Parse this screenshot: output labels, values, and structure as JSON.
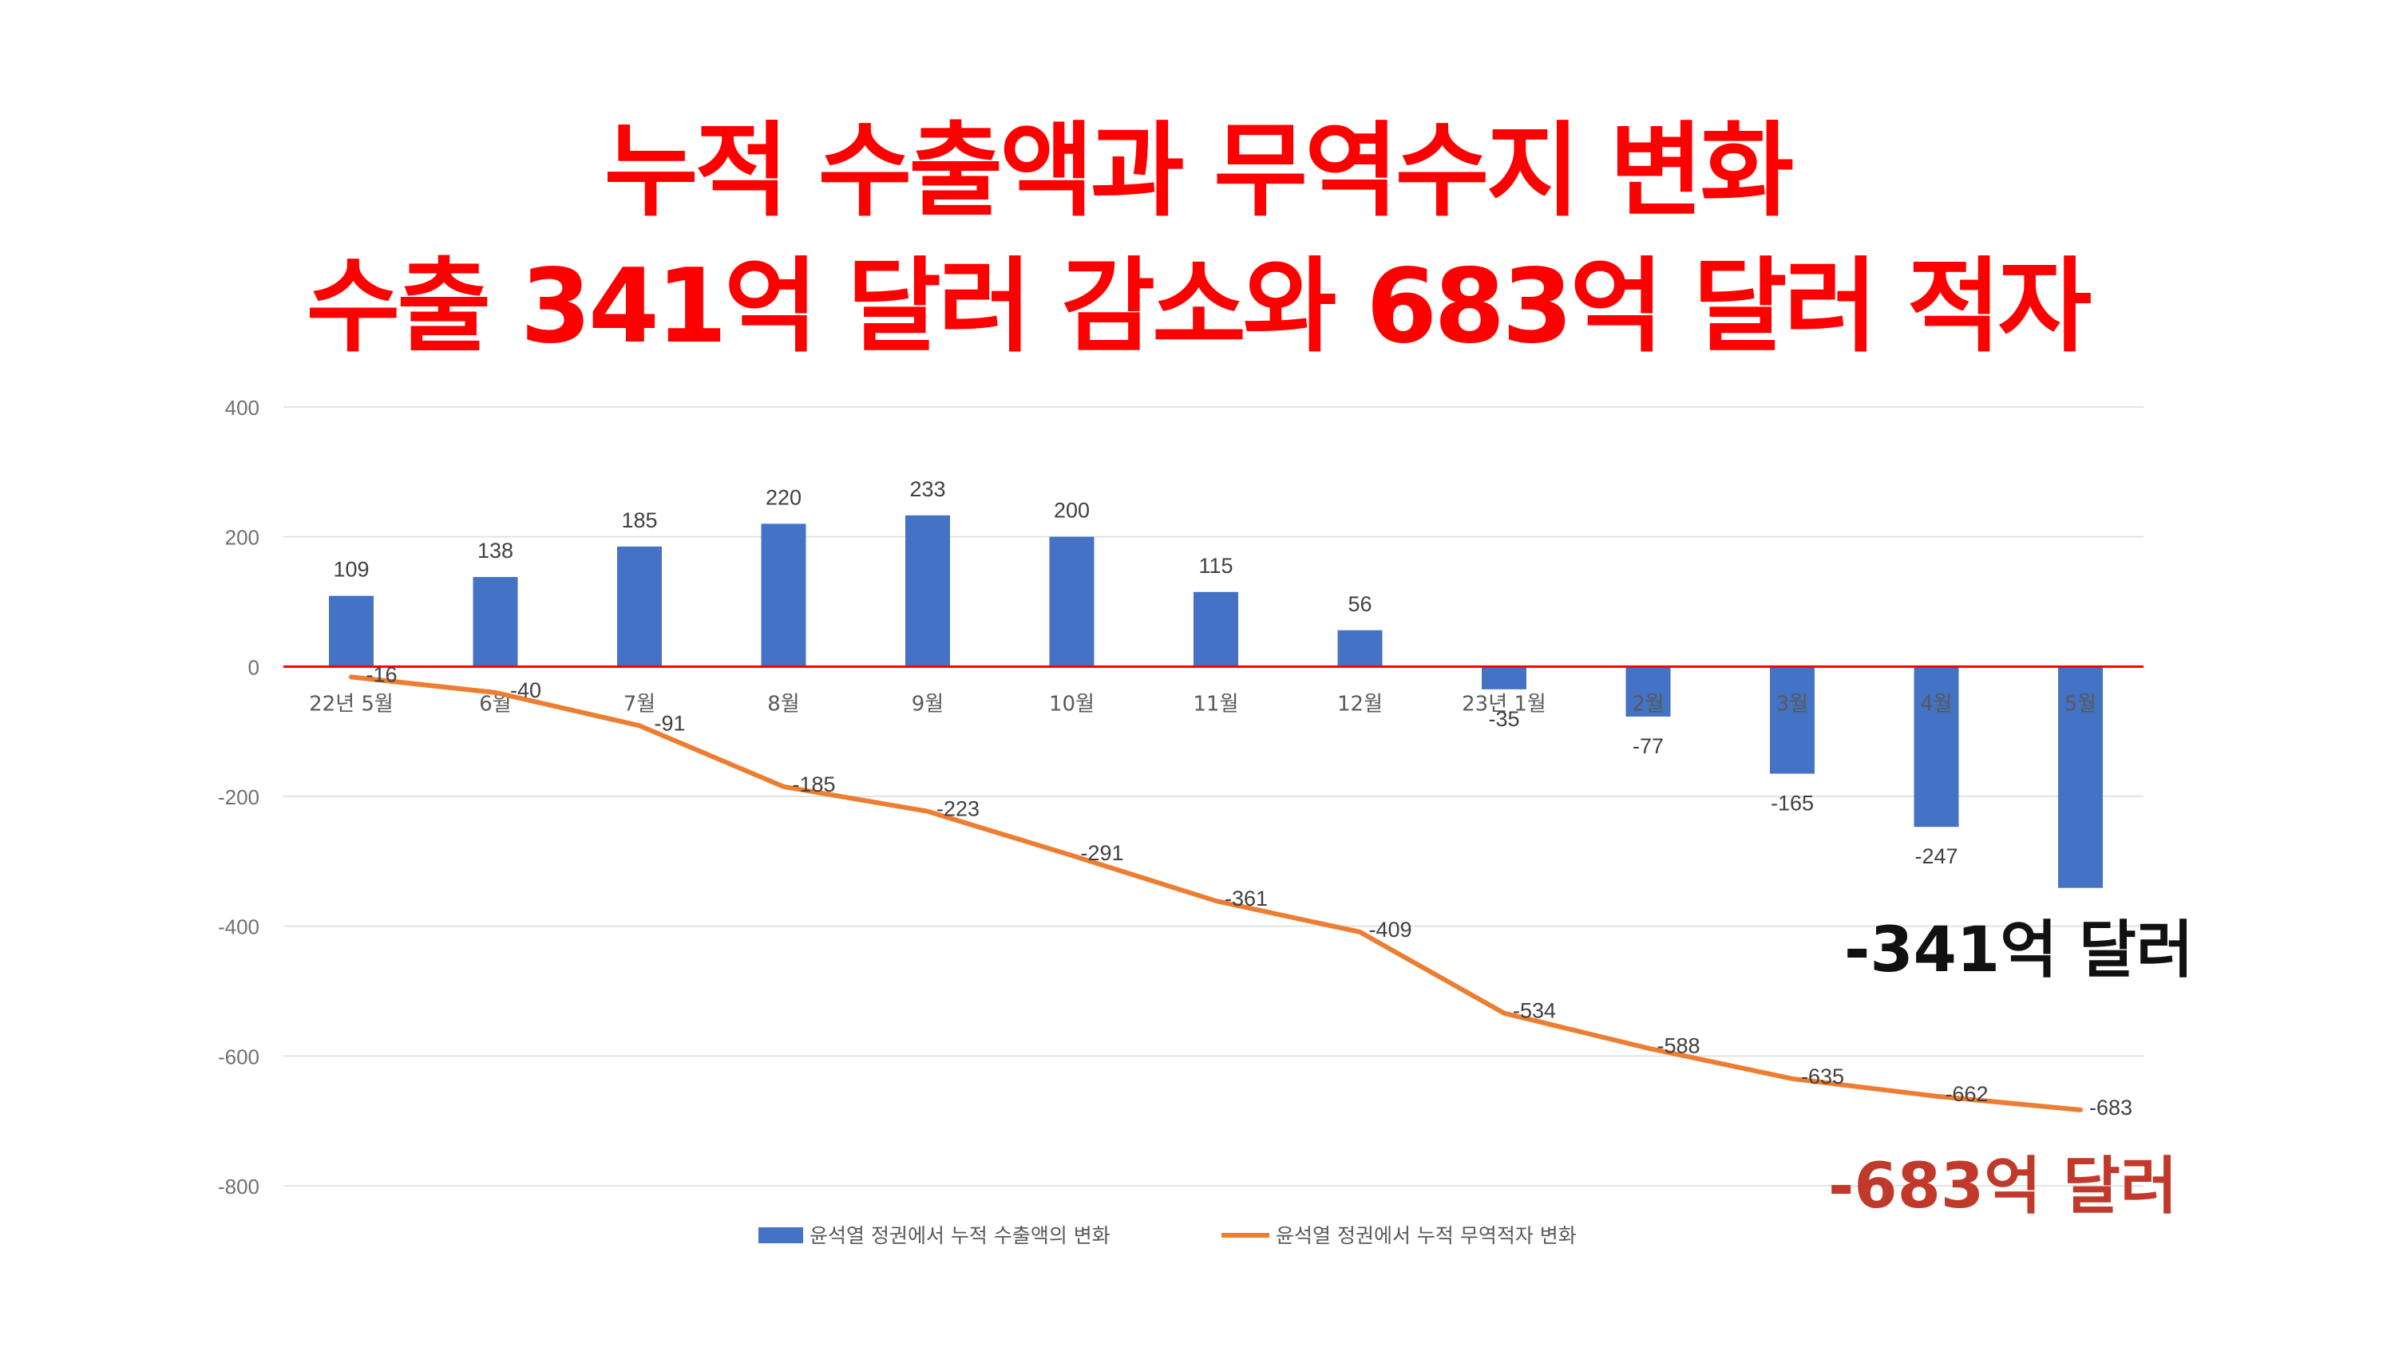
{
  "headline": {
    "line1": "누적 수출액과 무역수지 변화",
    "line2": "수출 341억 달러 감소와 683억 달러 적자"
  },
  "callouts": {
    "export_total": "-341억 달러",
    "trade_total": "-683억 달러"
  },
  "colors": {
    "headline": "#ff0000",
    "bar": "#4472c4",
    "line": "#ed7d31",
    "zero_line": "#ff0000",
    "export_callout": "#111111",
    "trade_callout": "#c0392b"
  },
  "chart_data": {
    "type": "bar",
    "categories": [
      "22년 5월",
      "6월",
      "7월",
      "8월",
      "9월",
      "10월",
      "11월",
      "12월",
      "23년 1월",
      "2월",
      "3월",
      "4월",
      "5월"
    ],
    "ylim": [
      -800,
      400
    ],
    "yticks": [
      400,
      200,
      0,
      -200,
      -400,
      -600,
      -800
    ],
    "grid": true,
    "legend_position": "bottom",
    "series": [
      {
        "name": "윤석열 정권에서 누적 수출액의 변화",
        "type": "bar",
        "values": [
          109,
          138,
          185,
          220,
          233,
          200,
          115,
          56,
          -35,
          -77,
          -165,
          -247,
          -341
        ],
        "labels": [
          "109",
          "138",
          "185",
          "220",
          "233",
          "200",
          "115",
          "56",
          "-35",
          "-77",
          "-165",
          "-247",
          ""
        ]
      },
      {
        "name": "윤석열 정권에서 누적 무역적자 변화",
        "type": "line",
        "values": [
          -16,
          -40,
          -91,
          -185,
          -223,
          -291,
          -361,
          -409,
          -534,
          -588,
          -635,
          -662,
          -683
        ],
        "labels": [
          "-16",
          "-40",
          "-91",
          "-185",
          "-223",
          "-291",
          "-361",
          "-409",
          "-534",
          "-588",
          "-635",
          "-662",
          "-683"
        ]
      }
    ]
  }
}
